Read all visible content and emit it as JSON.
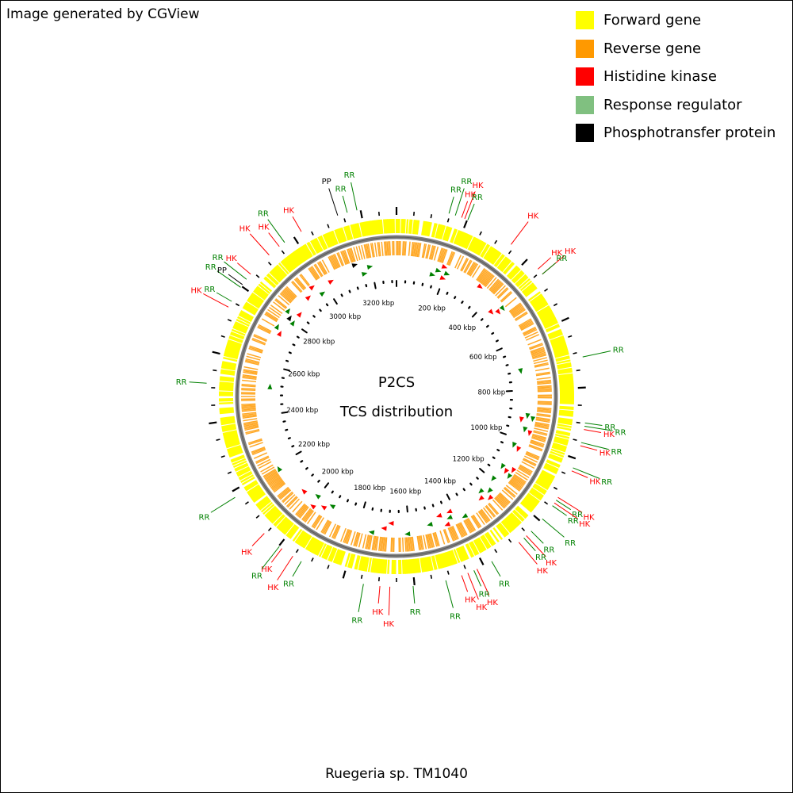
{
  "credit": "Image generated by CGView",
  "title_line1": "P2CS",
  "title_line2": "TCS distribution",
  "organism": "Ruegeria sp. TM1040",
  "legend": [
    {
      "label": "Forward gene",
      "color": "#ffff00"
    },
    {
      "label": "Reverse gene",
      "color": "#ff9900"
    },
    {
      "label": "Histidine kinase",
      "color": "#ff0000"
    },
    {
      "label": "Response regulator",
      "color": "#80c080"
    },
    {
      "label": "Phosphotransfer protein",
      "color": "#000000"
    }
  ],
  "colors": {
    "forward": "#ffff00",
    "reverse": "#ff9900",
    "hk": "#ff0000",
    "rr": "#008000",
    "pp": "#000000",
    "backbone": "#808080"
  },
  "genome_length_kbp": 3300,
  "ruler": {
    "labels": [
      "200 kbp",
      "400 kbp",
      "600 kbp",
      "800 kbp",
      "1000 kbp",
      "1200 kbp",
      "1400 kbp",
      "1600 kbp",
      "1800 kbp",
      "2000 kbp",
      "2200 kbp",
      "2400 kbp",
      "2600 kbp",
      "2800 kbp",
      "3000 kbp",
      "3200 kbp"
    ]
  },
  "features": [
    {
      "type": "RR",
      "deg": 16
    },
    {
      "type": "RR",
      "deg": 18
    },
    {
      "type": "HK",
      "deg": 20
    },
    {
      "type": "HK",
      "deg": 21
    },
    {
      "type": "RR",
      "deg": 22
    },
    {
      "type": "HK",
      "deg": 37
    },
    {
      "type": "HK",
      "deg": 48
    },
    {
      "type": "HK",
      "deg": 50
    },
    {
      "type": "RR",
      "deg": 50
    },
    {
      "type": "RR",
      "deg": 78
    },
    {
      "type": "RR",
      "deg": 98
    },
    {
      "type": "RR",
      "deg": 99
    },
    {
      "type": "HK",
      "deg": 100
    },
    {
      "type": "RR",
      "deg": 104
    },
    {
      "type": "HK",
      "deg": 105
    },
    {
      "type": "RR",
      "deg": 112
    },
    {
      "type": "HK",
      "deg": 113
    },
    {
      "type": "HK",
      "deg": 122
    },
    {
      "type": "RR",
      "deg": 123
    },
    {
      "type": "HK",
      "deg": 124
    },
    {
      "type": "RR",
      "deg": 125
    },
    {
      "type": "RR",
      "deg": 130
    },
    {
      "type": "RR",
      "deg": 135
    },
    {
      "type": "HK",
      "deg": 137
    },
    {
      "type": "RR",
      "deg": 138
    },
    {
      "type": "HK",
      "deg": 140
    },
    {
      "type": "RR",
      "deg": 150
    },
    {
      "type": "HK",
      "deg": 155
    },
    {
      "type": "RR",
      "deg": 156
    },
    {
      "type": "HK",
      "deg": 158
    },
    {
      "type": "HK",
      "deg": 160
    },
    {
      "type": "RR",
      "deg": 165
    },
    {
      "type": "RR",
      "deg": 175
    },
    {
      "type": "HK",
      "deg": 182
    },
    {
      "type": "HK",
      "deg": 185
    },
    {
      "type": "RR",
      "deg": 190
    },
    {
      "type": "RR",
      "deg": 210
    },
    {
      "type": "HK",
      "deg": 213
    },
    {
      "type": "HK",
      "deg": 217
    },
    {
      "type": "RR",
      "deg": 218
    },
    {
      "type": "HK",
      "deg": 224
    },
    {
      "type": "RR",
      "deg": 238
    },
    {
      "type": "RR",
      "deg": 274
    },
    {
      "type": "HK",
      "deg": 298
    },
    {
      "type": "RR",
      "deg": 300
    },
    {
      "type": "RR",
      "deg": 305
    },
    {
      "type": "PP",
      "deg": 306
    },
    {
      "type": "RR",
      "deg": 308
    },
    {
      "type": "HK",
      "deg": 310
    },
    {
      "type": "HK",
      "deg": 318
    },
    {
      "type": "HK",
      "deg": 322
    },
    {
      "type": "RR",
      "deg": 324
    },
    {
      "type": "HK",
      "deg": 330
    },
    {
      "type": "PP",
      "deg": 342
    },
    {
      "type": "RR",
      "deg": 345
    },
    {
      "type": "RR",
      "deg": 348
    }
  ]
}
